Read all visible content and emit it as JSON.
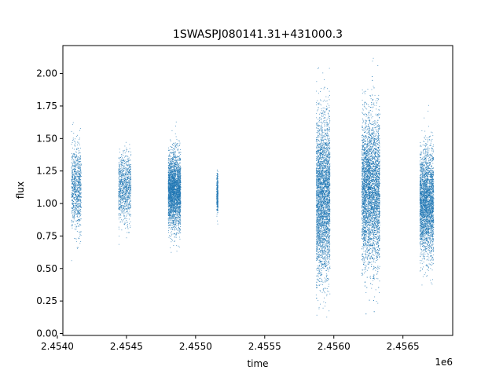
{
  "chart_data": {
    "type": "scatter",
    "title": "1SWASPJ080141.31+431000.3",
    "xlabel": "time",
    "ylabel": "flux",
    "x_offset_label": "1e6",
    "xlim": [
      2454040,
      2456860
    ],
    "ylim": [
      -0.015,
      2.215
    ],
    "x_ticks": [
      2454000,
      2454500,
      2455000,
      2455500,
      2456000,
      2456500
    ],
    "x_tick_labels": [
      "2.4540",
      "2.4545",
      "2.4550",
      "2.4555",
      "2.4560",
      "2.4565"
    ],
    "y_ticks": [
      0.0,
      0.25,
      0.5,
      0.75,
      1.0,
      1.25,
      1.5,
      1.75,
      2.0
    ],
    "y_tick_labels": [
      "0.00",
      "0.25",
      "0.50",
      "0.75",
      "1.00",
      "1.25",
      "1.50",
      "1.75",
      "2.00"
    ],
    "grid": false,
    "point_color": "#1f77b4",
    "observing_seasons": [
      {
        "x_start": 2454100,
        "x_end": 2454170,
        "center": 1.12,
        "spread": 0.16,
        "n": 900
      },
      {
        "x_start": 2454440,
        "x_end": 2454530,
        "center": 1.12,
        "spread": 0.13,
        "n": 1000
      },
      {
        "x_start": 2454800,
        "x_end": 2454890,
        "center": 1.1,
        "spread": 0.14,
        "n": 3000
      },
      {
        "x_start": 2455150,
        "x_end": 2455160,
        "center": 1.08,
        "spread": 0.08,
        "n": 300
      },
      {
        "x_start": 2455870,
        "x_end": 2455970,
        "center": 1.05,
        "spread": 0.3,
        "n": 3500
      },
      {
        "x_start": 2456200,
        "x_end": 2456330,
        "center": 1.1,
        "spread": 0.28,
        "n": 4500
      },
      {
        "x_start": 2456620,
        "x_end": 2456720,
        "center": 1.0,
        "spread": 0.2,
        "n": 3000
      }
    ]
  }
}
